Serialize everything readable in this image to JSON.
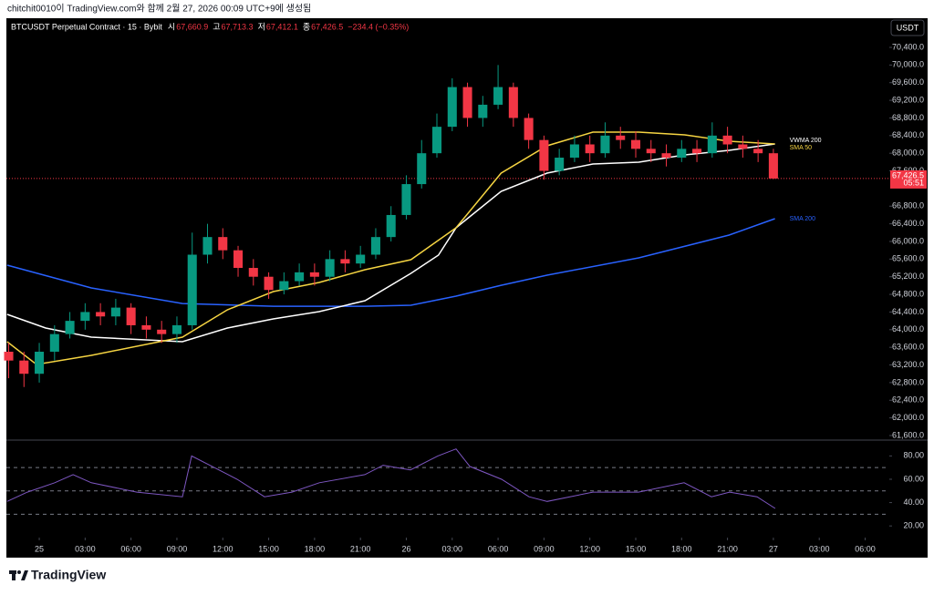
{
  "header": "chitchit0010이 TradingView.com와 함께 2월 27, 2026 00:09 UTC+9에 생성됨",
  "footer": {
    "brand": "TradingView"
  },
  "chart_data": {
    "type": "candlestick",
    "legend": {
      "symbol": "BTCUSDT Perpetual Contract · 15 · Bybit",
      "ohlc": [
        {
          "label": "시",
          "value": "67,660.9"
        },
        {
          "label": "고",
          "value": "67,713.3"
        },
        {
          "label": "저",
          "value": "67,412.1"
        },
        {
          "label": "종",
          "value": "67,426.5"
        }
      ],
      "change": "−234.4 (−0.35%)"
    },
    "currency": "USDT",
    "up_color": "#089981",
    "down_color": "#f23645",
    "xlim": [
      -2.15,
      55.58
    ],
    "xticks": [
      {
        "value": 0,
        "label": "25"
      },
      {
        "value": 3,
        "label": "03:00"
      },
      {
        "value": 6,
        "label": "06:00"
      },
      {
        "value": 9,
        "label": "09:00"
      },
      {
        "value": 12,
        "label": "12:00"
      },
      {
        "value": 15,
        "label": "15:00"
      },
      {
        "value": 18,
        "label": "18:00"
      },
      {
        "value": 21,
        "label": "21:00"
      },
      {
        "value": 24,
        "label": "26"
      },
      {
        "value": 27,
        "label": "03:00"
      },
      {
        "value": 30,
        "label": "06:00"
      },
      {
        "value": 33,
        "label": "09:00"
      },
      {
        "value": 36,
        "label": "12:00"
      },
      {
        "value": 39,
        "label": "15:00"
      },
      {
        "value": 42,
        "label": "18:00"
      },
      {
        "value": 45,
        "label": "21:00"
      },
      {
        "value": 48,
        "label": "27"
      },
      {
        "value": 51,
        "label": "03:00"
      },
      {
        "value": 54,
        "label": "06:00"
      }
    ],
    "ylim": [
      61517,
      71061
    ],
    "yticks": [
      {
        "value": 61600,
        "label": "61,600.0"
      },
      {
        "value": 62000,
        "label": "62,000.0"
      },
      {
        "value": 62400,
        "label": "62,400.0"
      },
      {
        "value": 62800,
        "label": "62,800.0"
      },
      {
        "value": 63200,
        "label": "63,200.0"
      },
      {
        "value": 63600,
        "label": "63,600.0"
      },
      {
        "value": 64000,
        "label": "64,000.0"
      },
      {
        "value": 64400,
        "label": "64,400.0"
      },
      {
        "value": 64800,
        "label": "64,800.0"
      },
      {
        "value": 65200,
        "label": "65,200.0"
      },
      {
        "value": 65600,
        "label": "65,600.0"
      },
      {
        "value": 66000,
        "label": "66,000.0"
      },
      {
        "value": 66400,
        "label": "66,400.0"
      },
      {
        "value": 66800,
        "label": "66,800.0"
      },
      {
        "value": 67600,
        "label": "67,600.0"
      },
      {
        "value": 68000,
        "label": "68,000.0"
      },
      {
        "value": 68400,
        "label": "68,400.0"
      },
      {
        "value": 68800,
        "label": "68,800.0"
      },
      {
        "value": 69200,
        "label": "69,200.0"
      },
      {
        "value": 69600,
        "label": "69,600.0"
      },
      {
        "value": 70000,
        "label": "70,000.0"
      },
      {
        "value": 70400,
        "label": "70,400.0"
      }
    ],
    "grid": false,
    "last_price": {
      "value": 67426.5,
      "label": "67,426.5",
      "countdown": "05:51",
      "color": "#f23645"
    },
    "candles": {
      "x": [
        -2,
        -1,
        0,
        1,
        2,
        3,
        4,
        5,
        6,
        7,
        8,
        9,
        10,
        11,
        12,
        13,
        14,
        15,
        16,
        17,
        18,
        19,
        20,
        21,
        22,
        23,
        24,
        25,
        26,
        27,
        28,
        29,
        30,
        31,
        32,
        33,
        34,
        35,
        36,
        37,
        38,
        39,
        40,
        41,
        42,
        43,
        44,
        45,
        46,
        47,
        48
      ],
      "open": [
        63500,
        63300,
        63000,
        63500,
        63900,
        64200,
        64400,
        64300,
        64500,
        64100,
        64000,
        63900,
        64100,
        65700,
        66100,
        65800,
        65400,
        65200,
        64900,
        65100,
        65300,
        65200,
        65600,
        65500,
        65700,
        66100,
        66600,
        67300,
        68000,
        68600,
        69500,
        68800,
        69100,
        69500,
        68800,
        68300,
        67600,
        67900,
        68200,
        68000,
        68400,
        68300,
        68100,
        68000,
        67900,
        68100,
        68000,
        68400,
        68200,
        68100,
        68000
      ],
      "high": [
        63700,
        63500,
        63700,
        64100,
        64400,
        64600,
        64600,
        64700,
        64600,
        64300,
        64200,
        64300,
        66200,
        66400,
        66300,
        65900,
        65600,
        65300,
        65300,
        65500,
        65500,
        65800,
        65800,
        65900,
        66300,
        66800,
        67500,
        68300,
        68900,
        69700,
        69600,
        69300,
        70000,
        69600,
        68900,
        68400,
        68100,
        68400,
        68400,
        68700,
        68600,
        68500,
        68300,
        68200,
        68300,
        68300,
        68700,
        68600,
        68400,
        68300,
        68100
      ],
      "low": [
        62900,
        62700,
        62800,
        63300,
        63800,
        64000,
        64100,
        64100,
        63900,
        63800,
        63700,
        63700,
        64000,
        65500,
        65600,
        65200,
        65000,
        64700,
        64800,
        65000,
        65000,
        65100,
        65300,
        65400,
        65600,
        66000,
        66500,
        67200,
        67900,
        68500,
        68600,
        68600,
        69000,
        68600,
        68100,
        67400,
        67500,
        67800,
        67800,
        67900,
        68100,
        67900,
        67800,
        67700,
        67800,
        67800,
        67900,
        68000,
        67900,
        67800,
        67412.1
      ],
      "close": [
        63300,
        63000,
        63500,
        63900,
        64200,
        64400,
        64300,
        64500,
        64100,
        64000,
        63900,
        64100,
        65700,
        66100,
        65800,
        65400,
        65200,
        64900,
        65100,
        65300,
        65200,
        65600,
        65500,
        65700,
        66100,
        66600,
        67300,
        68000,
        68600,
        69500,
        68800,
        69100,
        69500,
        68800,
        68300,
        67600,
        67900,
        68200,
        68000,
        68400,
        68300,
        68100,
        68000,
        67900,
        68100,
        68000,
        68400,
        68200,
        68100,
        68000,
        67426.5
      ]
    },
    "series": [
      {
        "name": "SMA 200",
        "color": "#2962ff",
        "x": [
          -2.1,
          3.4,
          9.36,
          15.3,
          21.3,
          24.3,
          27.25,
          30.2,
          33.2,
          39.2,
          45.1,
          48.1
        ],
        "values": [
          65462,
          64946,
          64594,
          64532,
          64532,
          64553,
          64760,
          65007,
          65235,
          65628,
          66145,
          66517
        ]
      },
      {
        "name": "VWMA 200",
        "color": "#ffffff",
        "x": [
          -2.1,
          0.42,
          3.4,
          9.36,
          12.3,
          15.3,
          18.3,
          21.3,
          24.3,
          26.1,
          27.25,
          30.2,
          33.2,
          36.2,
          39.2,
          42.2,
          45.1,
          48.1
        ],
        "values": [
          64347,
          64037,
          63830,
          63727,
          64037,
          64243,
          64409,
          64657,
          65276,
          65690,
          66309,
          67136,
          67549,
          67756,
          67797,
          67962,
          68065,
          68210
        ]
      },
      {
        "name": "SMA 50",
        "color": "#f5d442",
        "x": [
          -2.1,
          -0.18,
          3.4,
          9.36,
          12.3,
          15.3,
          18.3,
          21.3,
          24.3,
          27.25,
          30.2,
          33.2,
          36.2,
          39.2,
          42.2,
          45.1,
          48.1
        ],
        "values": [
          63727,
          63210,
          63417,
          63830,
          64450,
          64863,
          65070,
          65359,
          65586,
          66309,
          67549,
          68169,
          68479,
          68479,
          68417,
          68272,
          68210
        ]
      }
    ],
    "rsi": {
      "color": "#7e57c2",
      "ylim": [
        10,
        92
      ],
      "yticks": [
        {
          "value": 20,
          "label": "20.00"
        },
        {
          "value": 40,
          "label": "40.00"
        },
        {
          "value": 60,
          "label": "60.00"
        },
        {
          "value": 80,
          "label": "80.00"
        }
      ],
      "levels": [
        30,
        50,
        70
      ],
      "x": [
        -2.1,
        -0.78,
        1.01,
        2.21,
        3.4,
        6.38,
        9.36,
        9.96,
        11.15,
        12.94,
        14.73,
        16.52,
        18.31,
        21.29,
        22.48,
        24.27,
        26.06,
        27.25,
        28.15,
        30.23,
        32.02,
        33.21,
        36.2,
        39.18,
        42.16,
        43.95,
        45.14,
        46.93,
        48.12
      ],
      "values": [
        41,
        49,
        57,
        64,
        57,
        49,
        45,
        80,
        72,
        60,
        45,
        49,
        57,
        64,
        72,
        68,
        80,
        86,
        71,
        60,
        45,
        41,
        49,
        49,
        57,
        45,
        49,
        45,
        35
      ]
    }
  }
}
